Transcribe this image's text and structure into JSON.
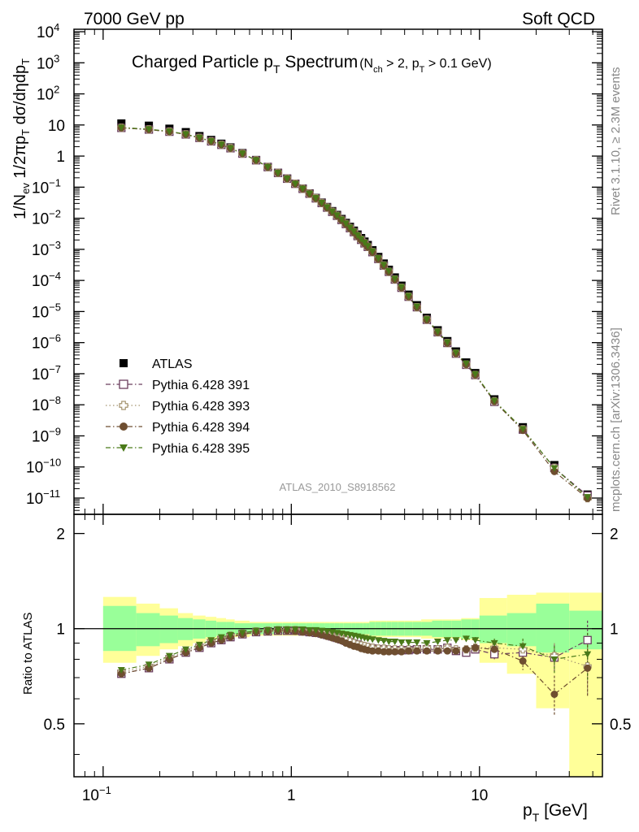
{
  "header": {
    "energy": "7000 GeV pp",
    "category": "Soft QCD"
  },
  "side_labels": {
    "rivet": "Rivet 3.1.10, ≥ 2.3M events",
    "mcplots": "mcplots.cern.ch [arXiv:1306.3436]"
  },
  "chart_data": {
    "type": "scatter",
    "title_main": "Charged Particle p",
    "title_main_sub": "T",
    "title_main_rest": " Spectrum",
    "title_cond": "(N",
    "title_cond_sub1": "ch",
    "title_cond_mid": " > 2, p",
    "title_cond_sub2": "T",
    "title_cond_end": " > 0.1 GeV)",
    "ylabel": "1/N_ev 1/2πp_T dσ/dηdp_T",
    "xlabel": "p_T [GeV]",
    "ratio_ylabel": "Ratio to ATLAS",
    "watermark": "ATLAS_2010_S8918562",
    "xlim": [
      0.07,
      45
    ],
    "xscale": "log",
    "ylim": [
      3e-12,
      12000
    ],
    "yscale": "log",
    "ratio_ylim": [
      0.34,
      2.3
    ],
    "x_ticks": [
      "10^-1",
      "1",
      "10"
    ],
    "y_ticks": [
      "10^-11",
      "10^-10",
      "10^-9",
      "10^-8",
      "10^-7",
      "10^-6",
      "10^-5",
      "10^-4",
      "10^-3",
      "10^-2",
      "10^-1",
      "1",
      "10",
      "10^2",
      "10^3",
      "10^4"
    ],
    "ratio_ticks": [
      "0.5",
      "1",
      "2"
    ],
    "legend_position": "lower-left",
    "x": [
      0.125,
      0.175,
      0.225,
      0.275,
      0.325,
      0.375,
      0.425,
      0.475,
      0.55,
      0.65,
      0.75,
      0.85,
      0.95,
      1.05,
      1.15,
      1.25,
      1.35,
      1.45,
      1.55,
      1.65,
      1.75,
      1.85,
      1.95,
      2.05,
      2.15,
      2.25,
      2.35,
      2.45,
      2.55,
      2.7,
      2.9,
      3.1,
      3.3,
      3.55,
      3.85,
      4.2,
      4.65,
      5.25,
      6.0,
      6.75,
      7.5,
      8.5,
      9.5,
      12.0,
      17.0,
      25.0,
      37.5
    ],
    "x_err": [
      [
        0.1,
        0.15
      ],
      [
        0.15,
        0.2
      ],
      [
        0.2,
        0.25
      ],
      [
        0.25,
        0.3
      ],
      [
        0.3,
        0.35
      ],
      [
        0.35,
        0.4
      ],
      [
        0.4,
        0.45
      ],
      [
        0.45,
        0.5
      ],
      [
        0.5,
        0.6
      ],
      [
        0.6,
        0.7
      ],
      [
        0.7,
        0.8
      ],
      [
        0.8,
        0.9
      ],
      [
        0.9,
        1.0
      ],
      [
        1.0,
        1.1
      ],
      [
        1.1,
        1.2
      ],
      [
        1.2,
        1.3
      ],
      [
        1.3,
        1.4
      ],
      [
        1.4,
        1.5
      ],
      [
        1.5,
        1.6
      ],
      [
        1.6,
        1.7
      ],
      [
        1.7,
        1.8
      ],
      [
        1.8,
        1.9
      ],
      [
        1.9,
        2.0
      ],
      [
        2.0,
        2.1
      ],
      [
        2.1,
        2.2
      ],
      [
        2.2,
        2.3
      ],
      [
        2.3,
        2.4
      ],
      [
        2.4,
        2.5
      ],
      [
        2.5,
        2.6
      ],
      [
        2.6,
        2.8
      ],
      [
        2.8,
        3.0
      ],
      [
        3.0,
        3.2
      ],
      [
        3.2,
        3.4
      ],
      [
        3.4,
        3.7
      ],
      [
        3.7,
        4.0
      ],
      [
        4.0,
        4.4
      ],
      [
        4.4,
        4.9
      ],
      [
        4.9,
        5.6
      ],
      [
        5.6,
        6.4
      ],
      [
        6.4,
        7.1
      ],
      [
        7.1,
        8.0
      ],
      [
        8.0,
        9.0
      ],
      [
        9.0,
        10.0
      ],
      [
        10.0,
        14.0
      ],
      [
        14.0,
        20.0
      ],
      [
        20.0,
        30.0
      ],
      [
        30.0,
        45.0
      ]
    ],
    "atlas_values": [
      11.2,
      9.5,
      7.6,
      5.9,
      4.4,
      3.3,
      2.5,
      1.9,
      1.25,
      0.75,
      0.45,
      0.29,
      0.19,
      0.13,
      0.09,
      0.063,
      0.045,
      0.032,
      0.023,
      0.017,
      0.0128,
      0.0095,
      0.0071,
      0.0053,
      0.004,
      0.003,
      0.0023,
      0.00178,
      0.00138,
      0.00094,
      0.00057,
      0.00035,
      0.000221,
      0.000125,
      6.8e-05,
      3.5e-05,
      1.6e-05,
      6.3e-06,
      2.5e-06,
      1.12e-06,
      5.2e-07,
      2.3e-07,
      1.05e-07,
      1.5e-08,
      1.9e-09,
      1.15e-10,
      1.3e-11
    ],
    "band_inner": [
      [
        0.85,
        1.18
      ],
      [
        0.88,
        1.12
      ],
      [
        0.9,
        1.1
      ],
      [
        0.92,
        1.08
      ],
      [
        0.93,
        1.07
      ],
      [
        0.94,
        1.06
      ],
      [
        0.95,
        1.05
      ],
      [
        0.95,
        1.05
      ],
      [
        0.96,
        1.04
      ],
      [
        0.96,
        1.04
      ],
      [
        0.96,
        1.04
      ],
      [
        0.96,
        1.04
      ],
      [
        0.96,
        1.04
      ],
      [
        0.96,
        1.04
      ],
      [
        0.96,
        1.04
      ],
      [
        0.96,
        1.04
      ],
      [
        0.96,
        1.04
      ],
      [
        0.96,
        1.04
      ],
      [
        0.96,
        1.04
      ],
      [
        0.96,
        1.04
      ],
      [
        0.96,
        1.04
      ],
      [
        0.96,
        1.04
      ],
      [
        0.96,
        1.04
      ],
      [
        0.96,
        1.04
      ],
      [
        0.96,
        1.04
      ],
      [
        0.96,
        1.04
      ],
      [
        0.96,
        1.04
      ],
      [
        0.96,
        1.04
      ],
      [
        0.96,
        1.04
      ],
      [
        0.95,
        1.05
      ],
      [
        0.95,
        1.05
      ],
      [
        0.95,
        1.05
      ],
      [
        0.95,
        1.05
      ],
      [
        0.95,
        1.05
      ],
      [
        0.95,
        1.05
      ],
      [
        0.95,
        1.05
      ],
      [
        0.95,
        1.05
      ],
      [
        0.95,
        1.05
      ],
      [
        0.94,
        1.06
      ],
      [
        0.94,
        1.06
      ],
      [
        0.94,
        1.06
      ],
      [
        0.93,
        1.07
      ],
      [
        0.93,
        1.07
      ],
      [
        0.9,
        1.1
      ],
      [
        0.88,
        1.12
      ],
      [
        0.84,
        1.2
      ],
      [
        0.86,
        1.14
      ]
    ],
    "band_outer": [
      [
        0.78,
        1.26
      ],
      [
        0.82,
        1.2
      ],
      [
        0.86,
        1.16
      ],
      [
        0.88,
        1.12
      ],
      [
        0.9,
        1.1
      ],
      [
        0.92,
        1.09
      ],
      [
        0.93,
        1.08
      ],
      [
        0.93,
        1.07
      ],
      [
        0.94,
        1.06
      ],
      [
        0.95,
        1.05
      ],
      [
        0.95,
        1.05
      ],
      [
        0.95,
        1.05
      ],
      [
        0.95,
        1.05
      ],
      [
        0.95,
        1.05
      ],
      [
        0.95,
        1.05
      ],
      [
        0.95,
        1.05
      ],
      [
        0.95,
        1.05
      ],
      [
        0.95,
        1.05
      ],
      [
        0.95,
        1.05
      ],
      [
        0.95,
        1.05
      ],
      [
        0.95,
        1.05
      ],
      [
        0.95,
        1.05
      ],
      [
        0.95,
        1.05
      ],
      [
        0.95,
        1.05
      ],
      [
        0.95,
        1.05
      ],
      [
        0.95,
        1.05
      ],
      [
        0.95,
        1.05
      ],
      [
        0.95,
        1.05
      ],
      [
        0.95,
        1.05
      ],
      [
        0.94,
        1.06
      ],
      [
        0.94,
        1.06
      ],
      [
        0.94,
        1.06
      ],
      [
        0.94,
        1.06
      ],
      [
        0.94,
        1.06
      ],
      [
        0.94,
        1.06
      ],
      [
        0.94,
        1.06
      ],
      [
        0.94,
        1.06
      ],
      [
        0.93,
        1.07
      ],
      [
        0.93,
        1.07
      ],
      [
        0.93,
        1.07
      ],
      [
        0.93,
        1.07
      ],
      [
        0.92,
        1.08
      ],
      [
        0.92,
        1.08
      ],
      [
        0.78,
        1.25
      ],
      [
        0.72,
        1.28
      ],
      [
        0.56,
        1.3
      ],
      [
        0.3,
        1.3
      ]
    ],
    "series": [
      {
        "name": "ATLAS",
        "color": "#000000",
        "marker": "filled-square",
        "line": "none"
      },
      {
        "name": "Pythia 6.428 391",
        "color": "#6b3d5e",
        "marker": "open-square",
        "line": "dashdot",
        "ratio": [
          0.72,
          0.75,
          0.8,
          0.84,
          0.87,
          0.9,
          0.92,
          0.94,
          0.96,
          0.975,
          0.98,
          0.985,
          0.985,
          0.985,
          0.98,
          0.975,
          0.97,
          0.965,
          0.955,
          0.945,
          0.935,
          0.925,
          0.915,
          0.905,
          0.895,
          0.89,
          0.88,
          0.875,
          0.87,
          0.865,
          0.86,
          0.86,
          0.855,
          0.855,
          0.855,
          0.855,
          0.86,
          0.86,
          0.86,
          0.87,
          0.85,
          0.84,
          0.86,
          0.83,
          0.84,
          0.81,
          0.92
        ],
        "ratio_err": [
          0,
          0,
          0,
          0,
          0,
          0,
          0,
          0,
          0,
          0,
          0,
          0,
          0,
          0,
          0,
          0,
          0,
          0,
          0,
          0,
          0,
          0,
          0,
          0,
          0,
          0,
          0,
          0,
          0,
          0,
          0,
          0,
          0,
          0,
          0,
          0,
          0,
          0.01,
          0.01,
          0.01,
          0.01,
          0.02,
          0.02,
          0.03,
          0.05,
          0.08,
          0.14
        ]
      },
      {
        "name": "Pythia 6.428 393",
        "color": "#a59470",
        "marker": "open-cross",
        "line": "dotted",
        "ratio": [
          0.73,
          0.76,
          0.81,
          0.85,
          0.88,
          0.91,
          0.93,
          0.95,
          0.965,
          0.98,
          0.985,
          0.99,
          0.99,
          0.99,
          0.985,
          0.98,
          0.975,
          0.97,
          0.96,
          0.95,
          0.94,
          0.93,
          0.92,
          0.91,
          0.9,
          0.89,
          0.885,
          0.88,
          0.875,
          0.87,
          0.865,
          0.865,
          0.86,
          0.86,
          0.86,
          0.86,
          0.86,
          0.87,
          0.86,
          0.87,
          0.86,
          0.86,
          0.87,
          0.87,
          0.86,
          0.82,
          0.76
        ],
        "ratio_err": [
          0,
          0,
          0,
          0,
          0,
          0,
          0,
          0,
          0,
          0,
          0,
          0,
          0,
          0,
          0,
          0,
          0,
          0,
          0,
          0,
          0,
          0,
          0,
          0,
          0,
          0,
          0,
          0,
          0,
          0,
          0,
          0,
          0,
          0,
          0,
          0,
          0,
          0.01,
          0.01,
          0.01,
          0.01,
          0.02,
          0.02,
          0.03,
          0.05,
          0.08,
          0.14
        ]
      },
      {
        "name": "Pythia 6.428 394",
        "color": "#6e4e30",
        "marker": "filled-circle",
        "line": "dashdot",
        "ratio": [
          0.72,
          0.75,
          0.8,
          0.84,
          0.87,
          0.9,
          0.92,
          0.94,
          0.96,
          0.975,
          0.98,
          0.985,
          0.985,
          0.98,
          0.975,
          0.97,
          0.965,
          0.955,
          0.945,
          0.935,
          0.925,
          0.915,
          0.9,
          0.89,
          0.88,
          0.875,
          0.865,
          0.86,
          0.855,
          0.85,
          0.85,
          0.845,
          0.845,
          0.845,
          0.845,
          0.85,
          0.85,
          0.85,
          0.85,
          0.85,
          0.85,
          0.86,
          0.87,
          0.86,
          0.79,
          0.62,
          0.75
        ],
        "ratio_err": [
          0,
          0,
          0,
          0,
          0,
          0,
          0,
          0,
          0,
          0,
          0,
          0,
          0,
          0,
          0,
          0,
          0,
          0,
          0,
          0,
          0,
          0,
          0,
          0,
          0,
          0,
          0,
          0,
          0,
          0,
          0,
          0,
          0,
          0,
          0,
          0,
          0,
          0.01,
          0.01,
          0.01,
          0.01,
          0.02,
          0.02,
          0.03,
          0.05,
          0.09,
          0.14
        ]
      },
      {
        "name": "Pythia 6.428 395",
        "color": "#4a7a19",
        "marker": "filled-triangle-down",
        "line": "dashdot",
        "ratio": [
          0.74,
          0.77,
          0.82,
          0.86,
          0.89,
          0.92,
          0.94,
          0.955,
          0.97,
          0.985,
          0.99,
          0.995,
          0.995,
          0.995,
          0.995,
          0.99,
          0.99,
          0.985,
          0.98,
          0.975,
          0.97,
          0.965,
          0.96,
          0.955,
          0.95,
          0.945,
          0.94,
          0.935,
          0.93,
          0.925,
          0.92,
          0.915,
          0.91,
          0.91,
          0.905,
          0.905,
          0.905,
          0.9,
          0.91,
          0.92,
          0.92,
          0.93,
          0.92,
          0.9,
          0.88,
          0.8,
          0.83
        ],
        "ratio_err": [
          0,
          0,
          0,
          0,
          0,
          0,
          0,
          0,
          0,
          0,
          0,
          0,
          0,
          0,
          0,
          0,
          0,
          0,
          0,
          0,
          0,
          0,
          0,
          0,
          0,
          0,
          0,
          0,
          0,
          0,
          0,
          0,
          0,
          0,
          0,
          0,
          0,
          0.01,
          0.01,
          0.01,
          0.01,
          0.02,
          0.02,
          0.03,
          0.05,
          0.08,
          0.14
        ]
      }
    ]
  }
}
